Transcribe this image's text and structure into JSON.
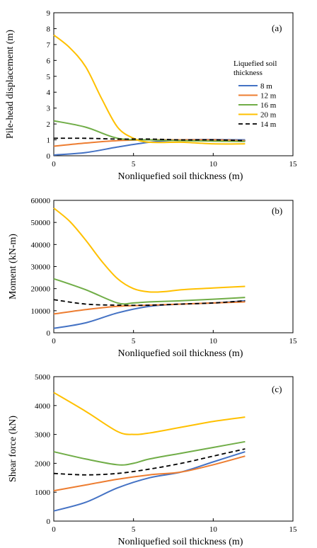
{
  "chart_data": [
    {
      "type": "line",
      "panel_label": "(a)",
      "xlabel": "Nonliquefied soil thickness (m)",
      "ylabel": "Pile-head displacement (m)",
      "xlim": [
        0,
        15
      ],
      "ylim": [
        0,
        9
      ],
      "xticks": [
        0,
        5,
        10,
        15
      ],
      "yticks": [
        0,
        1,
        2,
        3,
        4,
        5,
        6,
        7,
        8,
        9
      ],
      "legend": {
        "title": [
          "Liquefied soil",
          "thickness"
        ],
        "placement": "right",
        "entries": [
          "8 m",
          "12 m",
          "16 m",
          "20 m",
          "14 m"
        ]
      },
      "series": [
        {
          "name": "8 m",
          "color": "#4472C4",
          "dashed": false,
          "x": [
            0,
            2,
            4,
            6,
            8,
            10,
            12
          ],
          "y": [
            0.05,
            0.2,
            0.55,
            0.85,
            1.0,
            1.02,
            1.0
          ]
        },
        {
          "name": "12 m",
          "color": "#ED7D31",
          "dashed": false,
          "x": [
            0,
            2,
            4,
            6,
            8,
            10,
            12
          ],
          "y": [
            0.6,
            0.8,
            0.95,
            1.0,
            1.0,
            1.0,
            0.95
          ]
        },
        {
          "name": "16 m",
          "color": "#70AD47",
          "dashed": false,
          "x": [
            0,
            2,
            4,
            6,
            8,
            10,
            12
          ],
          "y": [
            2.2,
            1.8,
            1.1,
            1.0,
            0.95,
            0.92,
            0.9
          ]
        },
        {
          "name": "20 m",
          "color": "#FFC000",
          "dashed": false,
          "x": [
            0,
            1,
            2,
            3,
            4,
            5,
            6,
            8,
            10,
            12
          ],
          "y": [
            7.6,
            6.8,
            5.6,
            3.6,
            1.8,
            1.1,
            0.85,
            0.85,
            0.75,
            0.75
          ]
        },
        {
          "name": "14 m",
          "color": "#000000",
          "dashed": true,
          "x": [
            0,
            2,
            4,
            6,
            8,
            10,
            12
          ],
          "y": [
            1.1,
            1.1,
            1.05,
            1.05,
            1.0,
            1.0,
            0.95
          ]
        }
      ]
    },
    {
      "type": "line",
      "panel_label": "(b)",
      "xlabel": "Nonliquefied soil thickness (m)",
      "ylabel": "Moment (kN-m)",
      "xlim": [
        0,
        15
      ],
      "ylim": [
        0,
        60000
      ],
      "xticks": [
        0,
        5,
        10,
        15
      ],
      "yticks": [
        0,
        10000,
        20000,
        30000,
        40000,
        50000,
        60000
      ],
      "series": [
        {
          "name": "8 m",
          "color": "#4472C4",
          "dashed": false,
          "x": [
            0,
            2,
            4,
            6,
            8,
            10,
            12
          ],
          "y": [
            2000,
            4500,
            9000,
            12000,
            13000,
            13500,
            14500
          ]
        },
        {
          "name": "12 m",
          "color": "#ED7D31",
          "dashed": false,
          "x": [
            0,
            2,
            4,
            6,
            8,
            10,
            12
          ],
          "y": [
            8500,
            10500,
            12000,
            12500,
            13000,
            13500,
            14000
          ]
        },
        {
          "name": "16 m",
          "color": "#70AD47",
          "dashed": false,
          "x": [
            0,
            2,
            4,
            5,
            6,
            8,
            10,
            12
          ],
          "y": [
            24500,
            19500,
            13500,
            13500,
            14000,
            14500,
            15200,
            16000
          ]
        },
        {
          "name": "20 m",
          "color": "#FFC000",
          "dashed": false,
          "x": [
            0,
            1,
            2,
            3,
            4,
            5,
            6,
            7,
            8,
            10,
            12
          ],
          "y": [
            56500,
            50500,
            42000,
            32500,
            24500,
            20000,
            18500,
            18700,
            19500,
            20300,
            21000
          ]
        },
        {
          "name": "14 m",
          "color": "#000000",
          "dashed": true,
          "x": [
            0,
            2,
            4,
            6,
            8,
            10,
            12
          ],
          "y": [
            15000,
            13000,
            12500,
            12500,
            13000,
            13500,
            14500
          ]
        }
      ]
    },
    {
      "type": "line",
      "panel_label": "(c)",
      "xlabel": "Nonliquefied soil thickness (m)",
      "ylabel": "Shear force (kN)",
      "xlim": [
        0,
        15
      ],
      "ylim": [
        0,
        5000
      ],
      "xticks": [
        0,
        5,
        10,
        15
      ],
      "yticks": [
        0,
        1000,
        2000,
        3000,
        4000,
        5000
      ],
      "series": [
        {
          "name": "8 m",
          "color": "#4472C4",
          "dashed": false,
          "x": [
            0,
            2,
            4,
            6,
            8,
            10,
            12
          ],
          "y": [
            350,
            650,
            1150,
            1500,
            1700,
            2050,
            2400
          ]
        },
        {
          "name": "12 m",
          "color": "#ED7D31",
          "dashed": false,
          "x": [
            0,
            2,
            4,
            6,
            8,
            10,
            12
          ],
          "y": [
            1050,
            1250,
            1450,
            1600,
            1700,
            1950,
            2250
          ]
        },
        {
          "name": "16 m",
          "color": "#70AD47",
          "dashed": false,
          "x": [
            0,
            2,
            4,
            5,
            6,
            8,
            10,
            12
          ],
          "y": [
            2400,
            2150,
            1950,
            2000,
            2150,
            2350,
            2550,
            2750
          ]
        },
        {
          "name": "20 m",
          "color": "#FFC000",
          "dashed": false,
          "x": [
            0,
            2,
            4,
            5,
            6,
            8,
            10,
            12
          ],
          "y": [
            4450,
            3800,
            3100,
            3000,
            3050,
            3250,
            3450,
            3600
          ]
        },
        {
          "name": "14 m",
          "color": "#000000",
          "dashed": true,
          "x": [
            0,
            2,
            4,
            6,
            8,
            10,
            12
          ],
          "y": [
            1650,
            1600,
            1650,
            1800,
            2000,
            2250,
            2500
          ]
        }
      ]
    }
  ]
}
